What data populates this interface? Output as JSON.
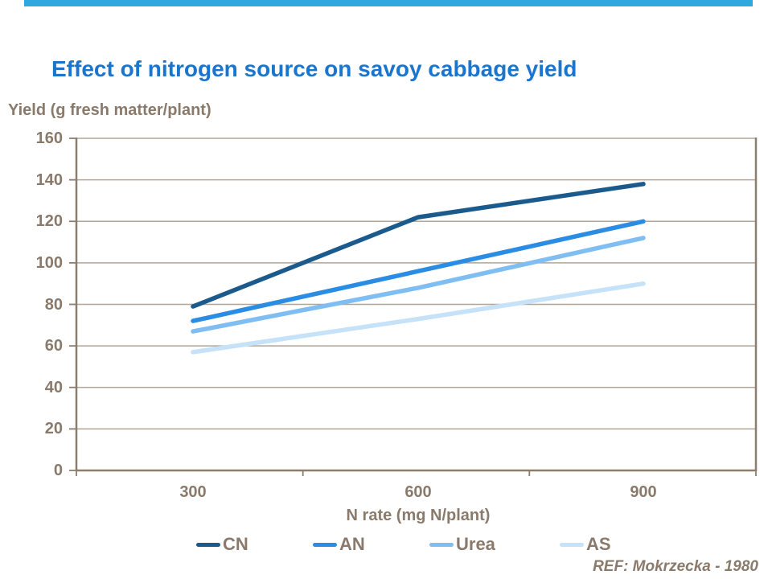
{
  "accent_bar_color": "#2FA8DF",
  "title": "Effect of nitrogen source on savoy cabbage yield",
  "title_color": "#1A75CE",
  "text_brown": "#8A7A6B",
  "axis_color": "#8C7D6E",
  "gridline_color": "#B0A596",
  "footnote": "REF: Mokrzecka - 1980",
  "chart_data": {
    "type": "line",
    "title": "Effect of nitrogen source on savoy cabbage yield",
    "xlabel": "N rate (mg N/plant)",
    "ylabel": "Yield (g fresh matter/plant)",
    "categories": [
      "300",
      "600",
      "900"
    ],
    "series": [
      {
        "name": "CN",
        "color": "#1B5A8C",
        "values": [
          79,
          122,
          138
        ]
      },
      {
        "name": "AN",
        "color": "#2B8CE3",
        "values": [
          72,
          96,
          120
        ]
      },
      {
        "name": "Urea",
        "color": "#7FBEF2",
        "values": [
          67,
          88,
          112
        ]
      },
      {
        "name": "AS",
        "color": "#C5E2F8",
        "values": [
          57,
          73,
          90
        ]
      }
    ],
    "ylim": [
      0,
      160
    ],
    "yticks": [
      0,
      20,
      40,
      60,
      80,
      100,
      120,
      140,
      160
    ],
    "grid": true,
    "legend_position": "bottom"
  }
}
